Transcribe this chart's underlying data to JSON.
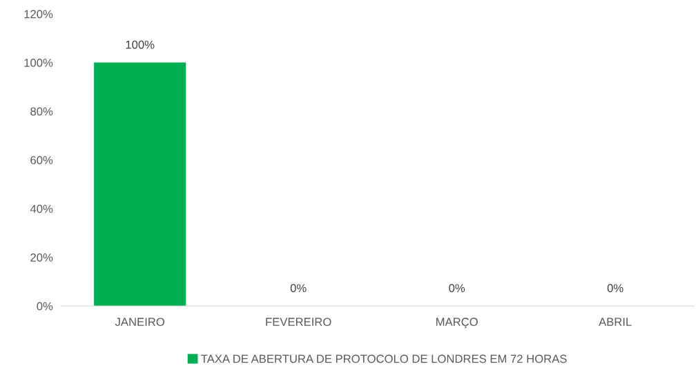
{
  "chart_data": {
    "type": "bar",
    "categories": [
      "JANEIRO",
      "FEVEREIRO",
      "MARÇO",
      "ABRIL"
    ],
    "series": [
      {
        "name": "TAXA DE ABERTURA DE PROTOCOLO DE LONDRES EM 72 HORAS",
        "color": "#00b050",
        "values": [
          100,
          0,
          0,
          0
        ],
        "value_labels": [
          "100%",
          "0%",
          "0%",
          "0%"
        ]
      }
    ],
    "ylim": [
      0,
      120
    ],
    "yticks": [
      {
        "value": 0,
        "label": "0%"
      },
      {
        "value": 20,
        "label": "20%"
      },
      {
        "value": 40,
        "label": "40%"
      },
      {
        "value": 60,
        "label": "60%"
      },
      {
        "value": 80,
        "label": "80%"
      },
      {
        "value": 100,
        "label": "100%"
      },
      {
        "value": 120,
        "label": "120%"
      }
    ],
    "grid": false,
    "legend": "bottom"
  }
}
